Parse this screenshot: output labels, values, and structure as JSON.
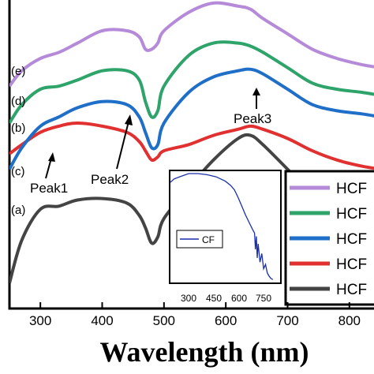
{
  "chart_data": {
    "type": "line",
    "xlabel": "Wavelength (nm)",
    "ylabel": "",
    "xlim": [
      250,
      850
    ],
    "ylim": [
      0,
      1
    ],
    "x_ticks": [
      300,
      400,
      500,
      600,
      700,
      800
    ],
    "x_tick_labels": [
      "300",
      "400",
      "500",
      "600",
      "700",
      "800"
    ],
    "grid": false,
    "legend_position": "bottom-right",
    "series": [
      {
        "name": "HCF",
        "curve_label": "(a)",
        "color": "#444444",
        "x": [
          250,
          270,
          300,
          330,
          360,
          400,
          440,
          460,
          470,
          480,
          490,
          500,
          540,
          580,
          620,
          640,
          660,
          700,
          740,
          780,
          820,
          850
        ],
        "y": [
          0.08,
          0.22,
          0.32,
          0.33,
          0.35,
          0.355,
          0.34,
          0.3,
          0.26,
          0.21,
          0.23,
          0.29,
          0.39,
          0.48,
          0.55,
          0.56,
          0.53,
          0.45,
          0.37,
          0.33,
          0.31,
          0.3
        ]
      },
      {
        "name": "HCF",
        "curve_label": "(b)",
        "color": "#e03030",
        "x": [
          250,
          270,
          300,
          330,
          360,
          400,
          440,
          460,
          470,
          480,
          490,
          500,
          540,
          580,
          620,
          640,
          660,
          700,
          740,
          780,
          820,
          850
        ],
        "y": [
          0.5,
          0.53,
          0.57,
          0.59,
          0.6,
          0.59,
          0.57,
          0.54,
          0.51,
          0.48,
          0.49,
          0.51,
          0.53,
          0.56,
          0.58,
          0.59,
          0.58,
          0.55,
          0.51,
          0.48,
          0.46,
          0.45
        ]
      },
      {
        "name": "HCF",
        "curve_label": "(c)",
        "color": "#1f6fc8",
        "x": [
          250,
          270,
          300,
          330,
          360,
          400,
          440,
          460,
          470,
          480,
          490,
          500,
          540,
          580,
          620,
          640,
          660,
          700,
          740,
          780,
          820,
          850
        ],
        "y": [
          0.45,
          0.52,
          0.59,
          0.62,
          0.65,
          0.67,
          0.66,
          0.62,
          0.57,
          0.52,
          0.53,
          0.6,
          0.7,
          0.75,
          0.77,
          0.775,
          0.76,
          0.71,
          0.66,
          0.64,
          0.63,
          0.62
        ]
      },
      {
        "name": "HCF",
        "curve_label": "(d)",
        "color": "#2ea36a",
        "x": [
          250,
          270,
          300,
          330,
          360,
          400,
          440,
          460,
          470,
          480,
          490,
          500,
          540,
          580,
          620,
          640,
          660,
          700,
          740,
          780,
          820,
          850
        ],
        "y": [
          0.6,
          0.66,
          0.71,
          0.72,
          0.74,
          0.77,
          0.77,
          0.74,
          0.67,
          0.62,
          0.64,
          0.72,
          0.82,
          0.86,
          0.86,
          0.85,
          0.83,
          0.78,
          0.73,
          0.71,
          0.7,
          0.69
        ]
      },
      {
        "name": "HCF",
        "curve_label": "(e)",
        "color": "#b58ad8",
        "x": [
          250,
          270,
          300,
          330,
          360,
          400,
          440,
          460,
          470,
          480,
          490,
          500,
          540,
          580,
          620,
          640,
          660,
          700,
          740,
          780,
          820,
          850
        ],
        "y": [
          0.72,
          0.77,
          0.81,
          0.83,
          0.86,
          0.9,
          0.9,
          0.88,
          0.84,
          0.84,
          0.86,
          0.9,
          0.96,
          0.99,
          0.98,
          0.97,
          0.94,
          0.89,
          0.84,
          0.81,
          0.79,
          0.78
        ]
      }
    ],
    "annotations": [
      {
        "label": "Peak1",
        "x": 318,
        "y": 0.32
      },
      {
        "label": "Peak2",
        "x": 470,
        "y": 0.53
      },
      {
        "label": "Peak3",
        "x": 640,
        "y": 0.57
      }
    ],
    "inset": {
      "type": "line",
      "x_tick_labels": [
        "300",
        "450",
        "600",
        "750"
      ],
      "xlim": [
        250,
        850
      ],
      "series": [
        {
          "name": "CF",
          "color": "#1a2faa",
          "x": [
            250,
            270,
            300,
            350,
            400,
            450,
            500,
            550,
            580,
            600,
            620,
            640,
            660,
            680,
            700,
            710,
            715,
            720,
            725,
            730,
            740,
            750,
            760,
            770,
            780,
            790,
            800,
            810
          ],
          "y": [
            0.92,
            0.95,
            0.97,
            1.0,
            1.0,
            0.99,
            0.97,
            0.93,
            0.89,
            0.85,
            0.78,
            0.7,
            0.62,
            0.55,
            0.48,
            0.45,
            0.3,
            0.42,
            0.22,
            0.35,
            0.18,
            0.26,
            0.12,
            0.16,
            0.08,
            0.05,
            0.03,
            0.02
          ]
        }
      ]
    }
  }
}
